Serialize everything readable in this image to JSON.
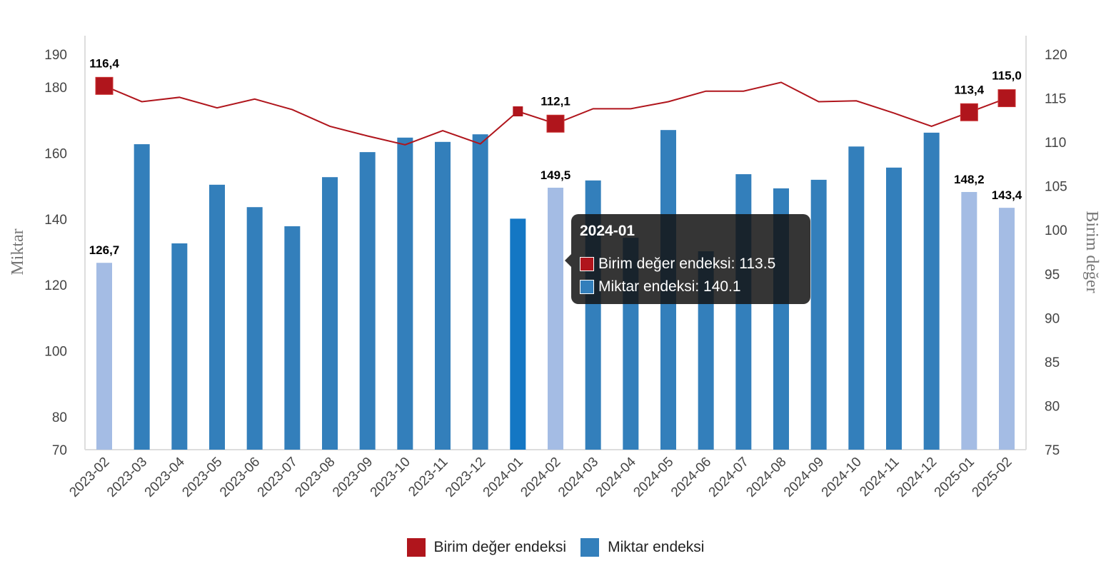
{
  "chart_data": {
    "type": "bar+line",
    "categories": [
      "2023-02",
      "2023-03",
      "2023-04",
      "2023-05",
      "2023-06",
      "2023-07",
      "2023-08",
      "2023-09",
      "2023-10",
      "2023-11",
      "2023-12",
      "2024-01",
      "2024-02",
      "2024-03",
      "2024-04",
      "2024-05",
      "2024-06",
      "2024-07",
      "2024-08",
      "2024-09",
      "2024-10",
      "2024-11",
      "2024-12",
      "2025-01",
      "2025-02"
    ],
    "series": [
      {
        "name": "Birim değer endeksi",
        "type": "line",
        "axis": "right",
        "color": "#b0151c",
        "values": [
          116.4,
          114.6,
          115.1,
          113.9,
          114.9,
          113.7,
          111.8,
          110.7,
          109.7,
          111.3,
          109.8,
          113.5,
          112.1,
          113.8,
          113.8,
          114.6,
          115.8,
          115.8,
          116.8,
          114.6,
          114.7,
          113.3,
          111.8,
          113.4,
          115.0
        ]
      },
      {
        "name": "Miktar endeksi",
        "type": "bar",
        "axis": "left",
        "color": "#337fbb",
        "values": [
          126.7,
          162.7,
          132.6,
          150.4,
          143.6,
          137.8,
          152.7,
          160.3,
          164.7,
          163.4,
          165.7,
          140.1,
          149.5,
          151.7,
          134.3,
          167.0,
          130.2,
          153.6,
          149.3,
          151.9,
          162.0,
          155.6,
          166.2,
          148.2,
          143.4
        ]
      }
    ],
    "highlight_indices": [
      0,
      12,
      23,
      24
    ],
    "highlight_color": "#a4bce4",
    "hover_index": 11,
    "hover_color": "#1477c4",
    "data_labels": [
      {
        "index": 0,
        "series": 0,
        "text": "116,4"
      },
      {
        "index": 0,
        "series": 1,
        "text": "126,7"
      },
      {
        "index": 12,
        "series": 0,
        "text": "112,1"
      },
      {
        "index": 12,
        "series": 1,
        "text": "149,5"
      },
      {
        "index": 23,
        "series": 0,
        "text": "113,4"
      },
      {
        "index": 23,
        "series": 1,
        "text": "148,2"
      },
      {
        "index": 24,
        "series": 0,
        "text": "115,0"
      },
      {
        "index": 24,
        "series": 1,
        "text": "143,4"
      }
    ],
    "left_axis": {
      "title": "Miktar",
      "ticks": [
        70,
        80,
        100,
        120,
        140,
        160,
        180,
        190
      ],
      "range": [
        70,
        190
      ]
    },
    "right_axis": {
      "title": "Birim değer",
      "ticks": [
        75,
        80,
        85,
        90,
        95,
        100,
        105,
        110,
        115,
        120
      ],
      "range": [
        75,
        120
      ]
    },
    "legend_position": "bottom"
  },
  "tooltip": {
    "title": "2024-01",
    "rows": [
      {
        "label": "Birim değer endeksi: 113.5",
        "color": "#b0151c"
      },
      {
        "label": "Miktar endeksi: 140.1",
        "color": "#337fbb"
      }
    ]
  },
  "legend": [
    {
      "label": "Birim değer endeksi",
      "color": "#b0151c"
    },
    {
      "label": "Miktar endeksi",
      "color": "#337fbb"
    }
  ]
}
